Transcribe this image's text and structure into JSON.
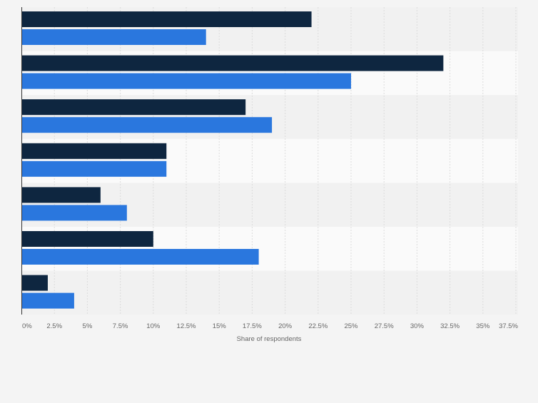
{
  "chart_data": {
    "type": "bar",
    "orientation": "horizontal",
    "categories": [
      "",
      "",
      "",
      "",
      "",
      "",
      ""
    ],
    "series": [
      {
        "values": [
          22,
          32,
          17,
          11,
          6,
          10,
          2
        ],
        "color": "#0e2640"
      },
      {
        "values": [
          14,
          25,
          19,
          11,
          8,
          18,
          4
        ],
        "color": "#2a77de"
      }
    ],
    "xlabel": "Share of respondents",
    "xlim": [
      0,
      37.5
    ],
    "xticks": [
      "0%",
      "2.5%",
      "5%",
      "7.5%",
      "10%",
      "12.5%",
      "15%",
      "17.5%",
      "20%",
      "22.5%",
      "25%",
      "27.5%",
      "30%",
      "32.5%",
      "35%",
      "37.5%"
    ],
    "grid": true,
    "legend": "none"
  }
}
